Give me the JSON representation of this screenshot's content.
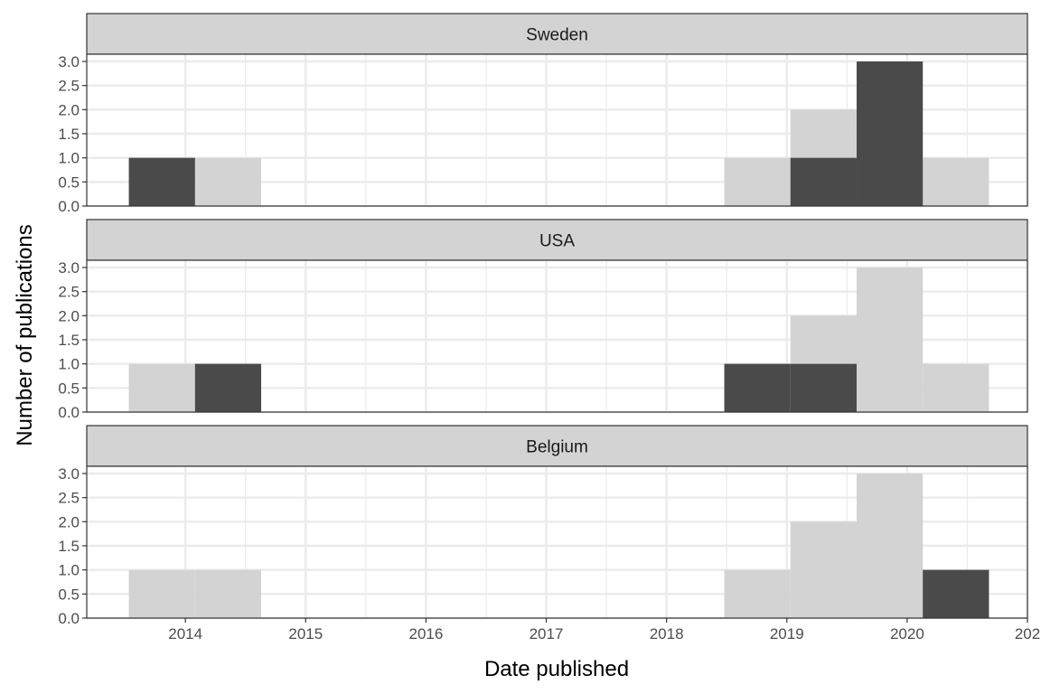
{
  "chart_data": {
    "type": "bar",
    "xlabel": "Date published",
    "ylabel": "Number of publications",
    "x_ticks": [
      "2014",
      "2015",
      "2016",
      "2017",
      "2018",
      "2019",
      "2020",
      "202"
    ],
    "y_ticks": [
      "0.0",
      "0.5",
      "1.0",
      "1.5",
      "2.0",
      "2.5",
      "3.0"
    ],
    "xlim": [
      2013.18,
      2021.0
    ],
    "ylim": [
      0,
      3.15
    ],
    "bin_width_years": 0.55,
    "grid": true,
    "colors": {
      "highlight": "#4a4a4a",
      "background": "#d3d3d3",
      "strip": "#d3d3d3",
      "grid": "#ebebeb",
      "panel_border": "#333333"
    },
    "background_counts": {
      "bin_starts": [
        2013.53,
        2014.08,
        2018.48,
        2019.03,
        2019.58,
        2020.13
      ],
      "counts": [
        1,
        1,
        1,
        2,
        3,
        1
      ]
    },
    "panels": [
      {
        "name": "Sweden",
        "bins": [
          {
            "x0": 2013.53,
            "x1": 2014.08,
            "value": 1
          },
          {
            "x0": 2019.03,
            "x1": 2019.58,
            "value": 1
          },
          {
            "x0": 2019.58,
            "x1": 2020.13,
            "value": 3
          }
        ]
      },
      {
        "name": "USA",
        "bins": [
          {
            "x0": 2014.08,
            "x1": 2014.63,
            "value": 1
          },
          {
            "x0": 2018.48,
            "x1": 2019.03,
            "value": 1
          },
          {
            "x0": 2019.03,
            "x1": 2019.58,
            "value": 1
          }
        ]
      },
      {
        "name": "Belgium",
        "bins": [
          {
            "x0": 2020.13,
            "x1": 2020.68,
            "value": 1
          }
        ]
      }
    ]
  }
}
